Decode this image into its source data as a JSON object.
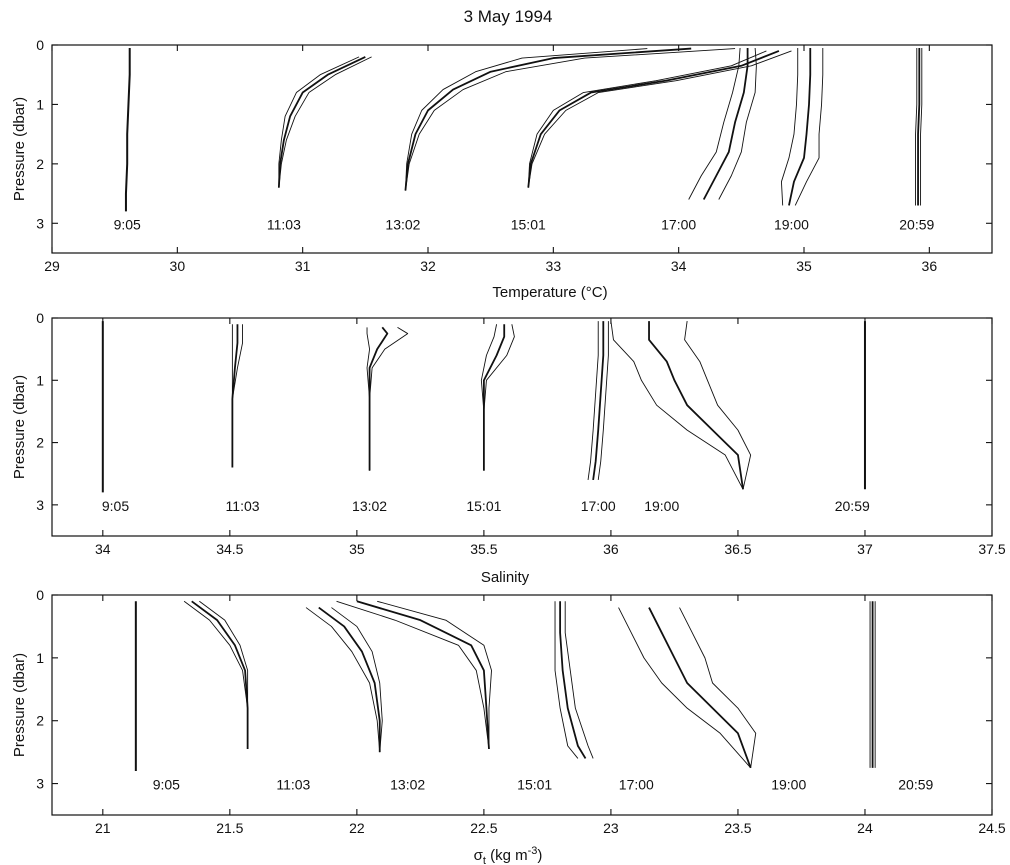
{
  "title": "3 May 1994",
  "chart_data": [
    {
      "type": "line",
      "xlabel": "Temperature (°C)",
      "ylabel": "Pressure (dbar)",
      "xlim": [
        29,
        36.5
      ],
      "ylim": [
        0,
        3.5
      ],
      "y_inverted": true,
      "x_ticks": [
        29,
        30,
        31,
        32,
        33,
        34,
        35,
        36
      ],
      "x_tick_labels": [
        "29",
        "30",
        "31",
        "32",
        "33",
        "34",
        "35",
        "36"
      ],
      "y_ticks": [
        0,
        1,
        2,
        3
      ],
      "y_tick_labels": [
        "0",
        "1",
        "2",
        "3"
      ],
      "series": [
        {
          "time": "9:05",
          "label_x": 29.6,
          "mean": [
            [
              29.62,
              0.05
            ],
            [
              29.62,
              0.5
            ],
            [
              29.61,
              1.0
            ],
            [
              29.6,
              1.5
            ],
            [
              29.6,
              2.0
            ],
            [
              29.59,
              2.5
            ],
            [
              29.59,
              2.8
            ]
          ],
          "spread": [
            0.0,
            0.0,
            0.0,
            0.0,
            0.0,
            0.0,
            0.0
          ]
        },
        {
          "time": "11:03",
          "label_x": 30.85,
          "mean": [
            [
              31.5,
              0.2
            ],
            [
              31.2,
              0.5
            ],
            [
              31.0,
              0.8
            ],
            [
              30.9,
              1.2
            ],
            [
              30.85,
              1.6
            ],
            [
              30.82,
              2.0
            ],
            [
              30.81,
              2.4
            ]
          ],
          "spread": [
            0.05,
            0.06,
            0.05,
            0.04,
            0.02,
            0.01,
            0.0
          ]
        },
        {
          "time": "13:02",
          "label_x": 31.8,
          "mean": [
            [
              34.1,
              0.06
            ],
            [
              33.0,
              0.22
            ],
            [
              32.5,
              0.45
            ],
            [
              32.2,
              0.75
            ],
            [
              32.0,
              1.1
            ],
            [
              31.9,
              1.5
            ],
            [
              31.84,
              2.0
            ],
            [
              31.82,
              2.45
            ]
          ],
          "spread": [
            0.35,
            0.25,
            0.12,
            0.08,
            0.05,
            0.03,
            0.01,
            0.0
          ]
        },
        {
          "time": "15:01",
          "label_x": 32.8,
          "mean": [
            [
              34.8,
              0.1
            ],
            [
              34.5,
              0.35
            ],
            [
              33.9,
              0.6
            ],
            [
              33.3,
              0.8
            ],
            [
              33.05,
              1.1
            ],
            [
              32.9,
              1.5
            ],
            [
              32.82,
              2.0
            ],
            [
              32.8,
              2.4
            ]
          ],
          "spread": [
            0.1,
            0.08,
            0.08,
            0.06,
            0.05,
            0.03,
            0.01,
            0.0
          ]
        },
        {
          "time": "17:00",
          "label_x": 34.0,
          "mean": [
            [
              34.55,
              0.05
            ],
            [
              34.55,
              0.35
            ],
            [
              34.52,
              0.8
            ],
            [
              34.45,
              1.3
            ],
            [
              34.4,
              1.8
            ],
            [
              34.3,
              2.2
            ],
            [
              34.2,
              2.6
            ]
          ],
          "spread": [
            0.06,
            0.07,
            0.09,
            0.09,
            0.1,
            0.12,
            0.12
          ]
        },
        {
          "time": "19:00",
          "label_x": 34.9,
          "mean": [
            [
              35.05,
              0.05
            ],
            [
              35.05,
              0.5
            ],
            [
              35.04,
              1.0
            ],
            [
              35.02,
              1.5
            ],
            [
              35.0,
              1.9
            ],
            [
              34.92,
              2.3
            ],
            [
              34.88,
              2.7
            ]
          ],
          "spread": [
            0.1,
            0.1,
            0.1,
            0.1,
            0.12,
            0.1,
            0.05
          ]
        },
        {
          "time": "20:59",
          "label_x": 35.9,
          "mean": [
            [
              35.92,
              0.05
            ],
            [
              35.92,
              0.5
            ],
            [
              35.92,
              1.0
            ],
            [
              35.91,
              1.5
            ],
            [
              35.91,
              2.0
            ],
            [
              35.91,
              2.5
            ],
            [
              35.91,
              2.7
            ]
          ],
          "spread": [
            0.02,
            0.02,
            0.02,
            0.02,
            0.02,
            0.02,
            0.02
          ]
        }
      ]
    },
    {
      "type": "line",
      "xlabel": "Salinity",
      "ylabel": "Pressure (dbar)",
      "xlim": [
        33.8,
        37.5
      ],
      "ylim": [
        0,
        3.5
      ],
      "y_inverted": true,
      "x_ticks": [
        34,
        34.5,
        35,
        35.5,
        36,
        36.5,
        37,
        37.5
      ],
      "x_tick_labels": [
        "34",
        "34.5",
        "35",
        "35.5",
        "36",
        "36.5",
        "37",
        "37.5"
      ],
      "y_ticks": [
        0,
        1,
        2,
        3
      ],
      "y_tick_labels": [
        "0",
        "1",
        "2",
        "3"
      ],
      "series": [
        {
          "time": "9:05",
          "label_x": 34.05,
          "mean": [
            [
              34.0,
              0.05
            ],
            [
              34.0,
              0.6
            ],
            [
              34.0,
              1.2
            ],
            [
              34.0,
              1.8
            ],
            [
              34.0,
              2.4
            ],
            [
              34.0,
              2.8
            ]
          ],
          "spread": [
            0.0,
            0.0,
            0.0,
            0.0,
            0.0,
            0.0
          ]
        },
        {
          "time": "11:03",
          "label_x": 34.55,
          "mean": [
            [
              34.53,
              0.1
            ],
            [
              34.53,
              0.4
            ],
            [
              34.52,
              0.8
            ],
            [
              34.51,
              1.3
            ],
            [
              34.51,
              1.9
            ],
            [
              34.51,
              2.4
            ]
          ],
          "spread": [
            0.02,
            0.02,
            0.01,
            0.0,
            0.0,
            0.0
          ]
        },
        {
          "time": "13:02",
          "label_x": 35.05,
          "mean": [
            [
              35.1,
              0.15
            ],
            [
              35.12,
              0.25
            ],
            [
              35.08,
              0.5
            ],
            [
              35.05,
              0.8
            ],
            [
              35.05,
              1.3
            ],
            [
              35.05,
              1.9
            ],
            [
              35.05,
              2.45
            ]
          ],
          "spread": [
            0.06,
            0.08,
            0.03,
            0.01,
            0.0,
            0.0,
            0.0
          ]
        },
        {
          "time": "15:01",
          "label_x": 35.5,
          "mean": [
            [
              35.58,
              0.1
            ],
            [
              35.58,
              0.3
            ],
            [
              35.55,
              0.6
            ],
            [
              35.5,
              1.0
            ],
            [
              35.5,
              1.5
            ],
            [
              35.5,
              2.0
            ],
            [
              35.5,
              2.45
            ]
          ],
          "spread": [
            0.03,
            0.04,
            0.04,
            0.01,
            0.0,
            0.0,
            0.0
          ]
        },
        {
          "time": "17:00",
          "label_x": 35.95,
          "mean": [
            [
              35.97,
              0.05
            ],
            [
              35.97,
              0.6
            ],
            [
              35.96,
              1.2
            ],
            [
              35.95,
              1.8
            ],
            [
              35.94,
              2.3
            ],
            [
              35.93,
              2.6
            ]
          ],
          "spread": [
            0.02,
            0.02,
            0.02,
            0.02,
            0.02,
            0.02
          ]
        },
        {
          "time": "19:00",
          "label_x": 36.2,
          "mean": [
            [
              36.15,
              0.05
            ],
            [
              36.15,
              0.35
            ],
            [
              36.22,
              0.7
            ],
            [
              36.25,
              1.0
            ],
            [
              36.3,
              1.4
            ],
            [
              36.4,
              1.8
            ],
            [
              36.5,
              2.2
            ],
            [
              36.52,
              2.75
            ]
          ],
          "spread": [
            0.15,
            0.14,
            0.13,
            0.13,
            0.12,
            0.1,
            0.05,
            0.0
          ]
        },
        {
          "time": "20:59",
          "label_x": 36.95,
          "mean": [
            [
              37.0,
              0.05
            ],
            [
              37.0,
              0.6
            ],
            [
              37.0,
              1.2
            ],
            [
              37.0,
              1.8
            ],
            [
              37.0,
              2.4
            ],
            [
              37.0,
              2.75
            ]
          ],
          "spread": [
            0.0,
            0.0,
            0.0,
            0.0,
            0.0,
            0.0
          ]
        }
      ]
    },
    {
      "type": "line",
      "xlabel": "σ",
      "xlabel_sub": "t",
      "xlabel_units": " (kg m",
      "xlabel_sup": "-3",
      "xlabel_end": ")",
      "ylabel": "Pressure (dbar)",
      "xlim": [
        20.8,
        24.5
      ],
      "ylim": [
        0,
        3.5
      ],
      "y_inverted": true,
      "x_ticks": [
        21,
        21.5,
        22,
        22.5,
        23,
        23.5,
        24,
        24.5
      ],
      "x_tick_labels": [
        "21",
        "21.5",
        "22",
        "22.5",
        "23",
        "23.5",
        "24",
        "24.5"
      ],
      "y_ticks": [
        0,
        1,
        2,
        3
      ],
      "y_tick_labels": [
        "0",
        "1",
        "2",
        "3"
      ],
      "series": [
        {
          "time": "9:05",
          "label_x": 21.25,
          "mean": [
            [
              21.13,
              0.1
            ],
            [
              21.13,
              0.7
            ],
            [
              21.13,
              1.3
            ],
            [
              21.13,
              1.9
            ],
            [
              21.13,
              2.5
            ],
            [
              21.13,
              2.8
            ]
          ],
          "spread": [
            0.0,
            0.0,
            0.0,
            0.0,
            0.0,
            0.0
          ]
        },
        {
          "time": "11:03",
          "label_x": 21.75,
          "mean": [
            [
              21.35,
              0.1
            ],
            [
              21.45,
              0.4
            ],
            [
              21.52,
              0.8
            ],
            [
              21.56,
              1.2
            ],
            [
              21.57,
              1.8
            ],
            [
              21.57,
              2.45
            ]
          ],
          "spread": [
            0.03,
            0.03,
            0.02,
            0.01,
            0.0,
            0.0
          ]
        },
        {
          "time": "13:02",
          "label_x": 22.2,
          "mean": [
            [
              21.85,
              0.2
            ],
            [
              21.95,
              0.5
            ],
            [
              22.02,
              0.9
            ],
            [
              22.07,
              1.4
            ],
            [
              22.09,
              2.0
            ],
            [
              22.09,
              2.5
            ]
          ],
          "spread": [
            0.05,
            0.05,
            0.04,
            0.02,
            0.01,
            0.0
          ]
        },
        {
          "time": "15:01",
          "label_x": 22.7,
          "mean": [
            [
              22.0,
              0.1
            ],
            [
              22.25,
              0.4
            ],
            [
              22.45,
              0.8
            ],
            [
              22.5,
              1.2
            ],
            [
              22.51,
              1.8
            ],
            [
              22.52,
              2.45
            ]
          ],
          "spread": [
            0.08,
            0.1,
            0.05,
            0.03,
            0.01,
            0.0
          ]
        },
        {
          "time": "17:00",
          "label_x": 23.1,
          "mean": [
            [
              22.8,
              0.1
            ],
            [
              22.8,
              0.6
            ],
            [
              22.81,
              1.2
            ],
            [
              22.83,
              1.8
            ],
            [
              22.87,
              2.4
            ],
            [
              22.9,
              2.6
            ]
          ],
          "spread": [
            0.02,
            0.02,
            0.03,
            0.03,
            0.04,
            0.03
          ]
        },
        {
          "time": "19:00",
          "label_x": 23.7,
          "mean": [
            [
              23.15,
              0.2
            ],
            [
              23.2,
              0.6
            ],
            [
              23.25,
              1.0
            ],
            [
              23.3,
              1.4
            ],
            [
              23.4,
              1.8
            ],
            [
              23.5,
              2.2
            ],
            [
              23.55,
              2.75
            ]
          ],
          "spread": [
            0.12,
            0.12,
            0.12,
            0.1,
            0.1,
            0.07,
            0.0
          ]
        },
        {
          "time": "20:59",
          "label_x": 24.2,
          "mean": [
            [
              24.03,
              0.1
            ],
            [
              24.03,
              0.7
            ],
            [
              24.03,
              1.3
            ],
            [
              24.03,
              1.9
            ],
            [
              24.03,
              2.5
            ],
            [
              24.03,
              2.75
            ]
          ],
          "spread": [
            0.01,
            0.01,
            0.01,
            0.01,
            0.01,
            0.01
          ]
        }
      ]
    }
  ]
}
